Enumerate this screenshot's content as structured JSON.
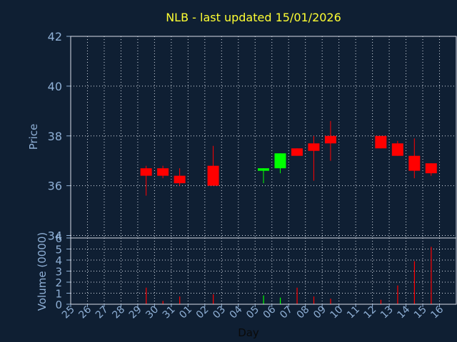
{
  "chart_data": {
    "type": "candlestick",
    "title": "NLB - last updated 15/01/2026",
    "xlabel": "Day",
    "ylabel": "Price",
    "ylabel2": "Volume (0000)",
    "ylim": [
      33.9,
      42
    ],
    "ylim2": [
      0,
      6
    ],
    "yticks": [
      "42",
      "40",
      "38",
      "36",
      "34"
    ],
    "yticks2": [
      "6",
      "5",
      "4",
      "3",
      "2",
      "1",
      "0"
    ],
    "categories": [
      "25",
      "26",
      "27",
      "28",
      "29",
      "30",
      "31",
      "01",
      "02",
      "03",
      "04",
      "05",
      "06",
      "07",
      "08",
      "09",
      "10",
      "11",
      "12",
      "13",
      "14",
      "15",
      "16"
    ],
    "grid": true,
    "colors": {
      "up": "#00ff00",
      "down": "#ff0000",
      "background": "#0f1f33",
      "grid": "#d8dee8",
      "axis": "#8fb0d6",
      "title": "#ffff33"
    },
    "candles": [
      {
        "day": "29",
        "open": 36.7,
        "high": 36.8,
        "low": 35.6,
        "close": 36.4
      },
      {
        "day": "30",
        "open": 36.7,
        "high": 36.8,
        "low": 36.3,
        "close": 36.4
      },
      {
        "day": "31",
        "open": 36.4,
        "high": 36.7,
        "low": 36.0,
        "close": 36.1
      },
      {
        "day": "02",
        "open": 36.8,
        "high": 37.6,
        "low": 36.0,
        "close": 36.0
      },
      {
        "day": "05",
        "open": 36.6,
        "high": 36.7,
        "low": 36.1,
        "close": 36.7
      },
      {
        "day": "06",
        "open": 36.7,
        "high": 37.3,
        "low": 36.5,
        "close": 37.3
      },
      {
        "day": "07",
        "open": 37.5,
        "high": 37.5,
        "low": 37.2,
        "close": 37.2
      },
      {
        "day": "08",
        "open": 37.7,
        "high": 38.0,
        "low": 36.2,
        "close": 37.4
      },
      {
        "day": "09",
        "open": 38.0,
        "high": 38.6,
        "low": 37.0,
        "close": 37.7
      },
      {
        "day": "12",
        "open": 38.0,
        "high": 38.0,
        "low": 37.5,
        "close": 37.5
      },
      {
        "day": "13",
        "open": 37.7,
        "high": 37.8,
        "low": 37.2,
        "close": 37.2
      },
      {
        "day": "14",
        "open": 37.2,
        "high": 37.9,
        "low": 36.3,
        "close": 36.6
      },
      {
        "day": "15",
        "open": 36.9,
        "high": 36.9,
        "low": 36.4,
        "close": 36.5
      }
    ],
    "volume": [
      {
        "day": "29",
        "value": 1.5,
        "direction": "down"
      },
      {
        "day": "30",
        "value": 0.3,
        "direction": "down"
      },
      {
        "day": "31",
        "value": 0.7,
        "direction": "down"
      },
      {
        "day": "02",
        "value": 0.9,
        "direction": "down"
      },
      {
        "day": "05",
        "value": 0.8,
        "direction": "up"
      },
      {
        "day": "06",
        "value": 0.6,
        "direction": "up"
      },
      {
        "day": "07",
        "value": 1.5,
        "direction": "down"
      },
      {
        "day": "08",
        "value": 0.7,
        "direction": "down"
      },
      {
        "day": "09",
        "value": 0.5,
        "direction": "down"
      },
      {
        "day": "12",
        "value": 0.4,
        "direction": "down"
      },
      {
        "day": "13",
        "value": 1.7,
        "direction": "down"
      },
      {
        "day": "14",
        "value": 3.9,
        "direction": "down"
      },
      {
        "day": "15",
        "value": 5.2,
        "direction": "down"
      }
    ]
  }
}
